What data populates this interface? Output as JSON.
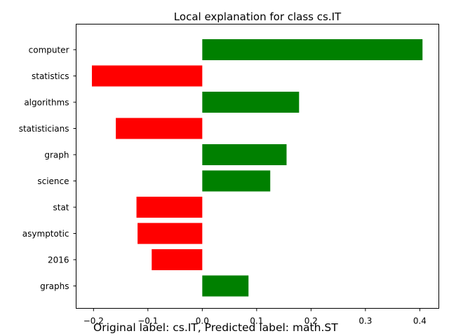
{
  "chart_data": {
    "type": "bar",
    "orientation": "horizontal",
    "title": "Local explanation for class cs.IT",
    "xlabel": "",
    "ylabel": "",
    "categories": [
      "computer",
      "statistics",
      "algorithms",
      "statisticians",
      "graph",
      "science",
      "stat",
      "asymptotic",
      "2016",
      "graphs"
    ],
    "values": [
      0.405,
      -0.203,
      0.178,
      -0.159,
      0.155,
      0.125,
      -0.121,
      -0.119,
      -0.093,
      0.085
    ],
    "xlim": [
      -0.232,
      0.435
    ],
    "xticks": [
      -0.2,
      -0.1,
      0.0,
      0.1,
      0.2,
      0.3,
      0.4
    ],
    "xtick_labels": [
      "−0.2",
      "−0.1",
      "0.0",
      "0.1",
      "0.2",
      "0.3",
      "0.4"
    ],
    "grid": false,
    "colors": {
      "positive": "#008000",
      "negative": "#ff0000"
    }
  },
  "caption": "Original label: cs.IT, Predicted label: math.ST"
}
